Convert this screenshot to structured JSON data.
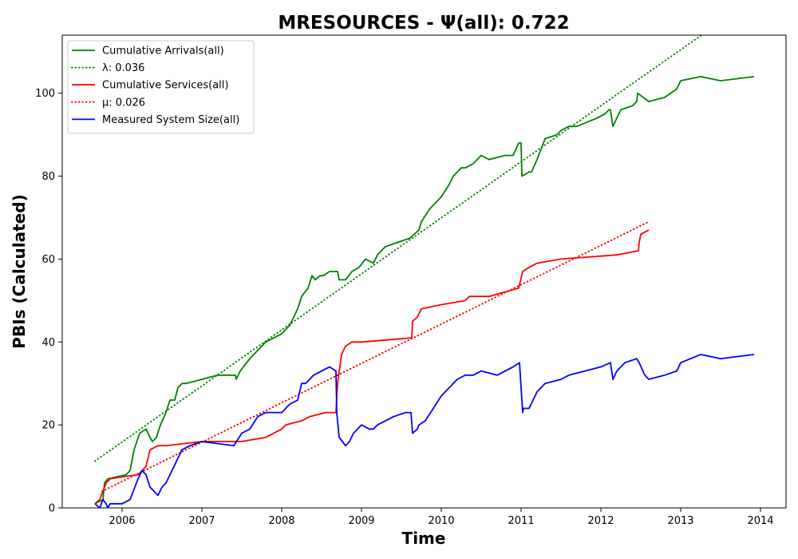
{
  "chart_data": {
    "type": "line",
    "title": "MRESOURCES -  Ψ(all): 0.722",
    "xlabel": "Time",
    "ylabel": "PBIs (Calculated)",
    "xlim": [
      2005.25,
      2014.32
    ],
    "ylim": [
      0,
      114
    ],
    "xticks": [
      2006,
      2007,
      2008,
      2009,
      2010,
      2011,
      2012,
      2013,
      2014
    ],
    "yticks": [
      0,
      20,
      40,
      60,
      80,
      100
    ],
    "grid": false,
    "legend_position": "top-left",
    "series": [
      {
        "name": "Cumulative Arrivals(all)",
        "color": "#008000",
        "style": "solid",
        "x": [
          2005.66,
          2005.76,
          2005.78,
          2005.82,
          2006.05,
          2006.1,
          2006.15,
          2006.22,
          2006.3,
          2006.35,
          2006.38,
          2006.43,
          2006.48,
          2006.55,
          2006.6,
          2006.66,
          2006.7,
          2006.75,
          2006.8,
          2007.0,
          2007.2,
          2007.42,
          2007.43,
          2007.48,
          2007.6,
          2007.8,
          2008.0,
          2008.1,
          2008.15,
          2008.2,
          2008.25,
          2008.33,
          2008.38,
          2008.42,
          2008.48,
          2008.52,
          2008.6,
          2008.7,
          2008.72,
          2008.8,
          2008.88,
          2008.97,
          2009.05,
          2009.15,
          2009.2,
          2009.3,
          2009.45,
          2009.6,
          2009.72,
          2009.75,
          2009.85,
          2010.0,
          2010.1,
          2010.15,
          2010.25,
          2010.3,
          2010.4,
          2010.5,
          2010.6,
          2010.8,
          2010.9,
          2010.97,
          2011.0,
          2011.01,
          2011.1,
          2011.13,
          2011.2,
          2011.3,
          2011.45,
          2011.5,
          2011.6,
          2011.7,
          2011.95,
          2012.05,
          2012.1,
          2012.12,
          2012.15,
          2012.25,
          2012.4,
          2012.45,
          2012.46,
          2012.6,
          2012.8,
          2012.95,
          2013.0,
          2013.25,
          2013.5,
          2013.92
        ],
        "y": [
          1,
          2,
          6,
          7,
          8,
          9,
          14,
          18,
          19,
          17,
          16,
          17,
          20,
          23,
          26,
          26,
          29,
          30,
          30,
          31,
          32,
          32,
          31,
          33,
          36,
          40,
          42,
          44,
          46,
          48,
          51,
          53,
          56,
          55,
          56,
          56,
          57,
          57,
          55,
          55,
          57,
          58,
          60,
          59,
          61,
          63,
          64,
          65,
          67,
          69,
          72,
          75,
          78,
          80,
          82,
          82,
          83,
          85,
          84,
          85,
          85,
          88,
          88,
          80,
          81,
          81,
          84,
          89,
          90,
          91,
          92,
          92,
          94,
          95,
          96,
          96,
          92,
          96,
          97,
          98,
          100,
          98,
          99,
          101,
          103,
          104,
          103,
          104
        ]
      },
      {
        "name": "λ: 0.036",
        "color": "#008000",
        "style": "dotted",
        "x": [
          2005.66,
          2013.26
        ],
        "y": [
          11.3,
          114
        ]
      },
      {
        "name": "Cumulative Services(all)",
        "color": "#ff0000",
        "style": "solid",
        "x": [
          2005.66,
          2005.72,
          2005.76,
          2005.8,
          2005.85,
          2006.0,
          2006.2,
          2006.3,
          2006.35,
          2006.45,
          2006.55,
          2007.0,
          2007.5,
          2007.8,
          2008.0,
          2008.05,
          2008.25,
          2008.35,
          2008.55,
          2008.68,
          2008.7,
          2008.75,
          2008.8,
          2008.88,
          2009.0,
          2009.63,
          2009.64,
          2009.7,
          2009.75,
          2010.0,
          2010.3,
          2010.35,
          2010.6,
          2010.97,
          2011.02,
          2011.1,
          2011.2,
          2011.5,
          2012.2,
          2012.47,
          2012.48,
          2012.5,
          2012.55,
          2012.6
        ],
        "y": [
          1,
          2,
          4,
          6,
          7,
          7.5,
          8,
          10,
          14,
          15,
          15,
          16,
          16,
          17,
          19,
          20,
          21,
          22,
          23,
          23,
          30,
          37,
          39,
          40,
          40,
          41,
          45,
          46,
          48,
          49,
          50,
          51,
          51,
          53,
          57,
          58,
          59,
          60,
          61,
          62,
          64,
          66,
          66.5,
          67
        ]
      },
      {
        "name": "μ: 0.026",
        "color": "#ff0000",
        "style": "dotted",
        "x": [
          2005.75,
          2012.6
        ],
        "y": [
          4,
          69
        ]
      },
      {
        "name": "Measured System Size(all)",
        "color": "#0000ff",
        "style": "solid",
        "x": [
          2005.66,
          2005.72,
          2005.76,
          2005.8,
          2005.82,
          2005.85,
          2006.0,
          2006.1,
          2006.2,
          2006.25,
          2006.3,
          2006.35,
          2006.45,
          2006.5,
          2006.55,
          2006.6,
          2006.65,
          2006.75,
          2006.85,
          2007.0,
          2007.2,
          2007.4,
          2007.5,
          2007.6,
          2007.7,
          2007.8,
          2008.0,
          2008.1,
          2008.2,
          2008.25,
          2008.3,
          2008.4,
          2008.5,
          2008.6,
          2008.68,
          2008.69,
          2008.72,
          2008.8,
          2008.85,
          2008.9,
          2009.0,
          2009.1,
          2009.15,
          2009.2,
          2009.3,
          2009.4,
          2009.55,
          2009.62,
          2009.64,
          2009.7,
          2009.72,
          2009.8,
          2009.9,
          2010.0,
          2010.1,
          2010.15,
          2010.2,
          2010.3,
          2010.4,
          2010.5,
          2010.7,
          2010.9,
          2010.98,
          2011.02,
          2011.03,
          2011.1,
          2011.2,
          2011.3,
          2011.5,
          2011.6,
          2011.8,
          2012.0,
          2012.12,
          2012.15,
          2012.2,
          2012.3,
          2012.45,
          2012.48,
          2012.55,
          2012.6,
          2012.8,
          2012.95,
          2013.0,
          2013.25,
          2013.5,
          2013.92
        ],
        "y": [
          1,
          0,
          2,
          1,
          0,
          1,
          1,
          2,
          7,
          9,
          8,
          5,
          3,
          5,
          6,
          8,
          10,
          14,
          15,
          16,
          15.5,
          15,
          18,
          19,
          22,
          23,
          23,
          25,
          26,
          30,
          30,
          32,
          33,
          34,
          33,
          23,
          17,
          15,
          16,
          18,
          20,
          19,
          19,
          20,
          21,
          22,
          23,
          23,
          18,
          19,
          20,
          21,
          24,
          27,
          29,
          30,
          31,
          32,
          32,
          33,
          32,
          34,
          35,
          23,
          24,
          24,
          28,
          30,
          31,
          32,
          33,
          34,
          35,
          31,
          33,
          35,
          36,
          35,
          32,
          31,
          32,
          33,
          35,
          37,
          36,
          37
        ]
      }
    ]
  }
}
